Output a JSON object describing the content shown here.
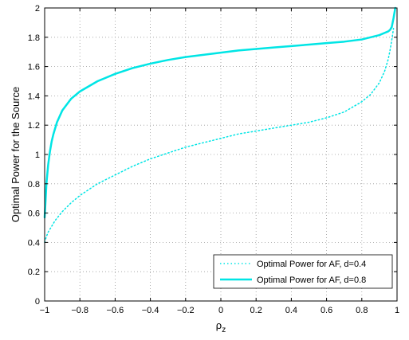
{
  "chart_data": {
    "type": "line",
    "xlabel": "ρ",
    "xlabel_subscript": "z",
    "ylabel": "Optimal Power for the Source",
    "xlim": [
      -1,
      1
    ],
    "ylim": [
      0,
      2
    ],
    "grid": true,
    "legend_position": "bottom-right",
    "x_ticks": [
      -1,
      -0.8,
      -0.6,
      -0.4,
      -0.2,
      0,
      0.2,
      0.4,
      0.6,
      0.8,
      1
    ],
    "x_tick_labels": [
      "−1",
      "−0.8",
      "−0.6",
      "−0.4",
      "−0.2",
      "0",
      "0.2",
      "0.4",
      "0.6",
      "0.8",
      "1"
    ],
    "y_ticks": [
      0,
      0.2,
      0.4,
      0.6,
      0.8,
      1,
      1.2,
      1.4,
      1.6,
      1.8,
      2
    ],
    "y_tick_labels": [
      "0",
      "0.2",
      "0.4",
      "0.6",
      "0.8",
      "1",
      "1.2",
      "1.4",
      "1.6",
      "1.8",
      "2"
    ],
    "series": [
      {
        "name": "Optimal Power for AF, d=0.4",
        "color": "#00e5e5",
        "style": "dotted",
        "x": [
          -1.0,
          -0.99,
          -0.98,
          -0.96,
          -0.94,
          -0.9,
          -0.85,
          -0.8,
          -0.7,
          -0.6,
          -0.5,
          -0.4,
          -0.3,
          -0.2,
          -0.1,
          0.0,
          0.1,
          0.2,
          0.3,
          0.4,
          0.5,
          0.6,
          0.7,
          0.8,
          0.85,
          0.9,
          0.93,
          0.95,
          0.96,
          0.97,
          0.98
        ],
        "y": [
          0.4,
          0.44,
          0.47,
          0.51,
          0.55,
          0.61,
          0.67,
          0.72,
          0.8,
          0.86,
          0.92,
          0.97,
          1.01,
          1.05,
          1.08,
          1.11,
          1.14,
          1.16,
          1.18,
          1.2,
          1.22,
          1.25,
          1.29,
          1.36,
          1.41,
          1.49,
          1.57,
          1.65,
          1.71,
          1.78,
          1.86
        ]
      },
      {
        "name": "Optimal Power for AF, d=0.8",
        "color": "#00e5e5",
        "style": "solid",
        "x": [
          -1.0,
          -0.995,
          -0.99,
          -0.98,
          -0.97,
          -0.96,
          -0.95,
          -0.93,
          -0.9,
          -0.85,
          -0.8,
          -0.7,
          -0.6,
          -0.5,
          -0.4,
          -0.3,
          -0.2,
          -0.1,
          0.0,
          0.1,
          0.2,
          0.3,
          0.4,
          0.5,
          0.6,
          0.7,
          0.8,
          0.85,
          0.9,
          0.93,
          0.95,
          0.96,
          0.97,
          0.98,
          0.99
        ],
        "y": [
          0.57,
          0.68,
          0.8,
          0.93,
          1.02,
          1.09,
          1.14,
          1.22,
          1.3,
          1.38,
          1.43,
          1.5,
          1.55,
          1.59,
          1.62,
          1.645,
          1.665,
          1.68,
          1.695,
          1.71,
          1.72,
          1.73,
          1.74,
          1.75,
          1.76,
          1.77,
          1.785,
          1.8,
          1.815,
          1.83,
          1.84,
          1.85,
          1.87,
          1.93,
          2.0
        ]
      }
    ]
  }
}
